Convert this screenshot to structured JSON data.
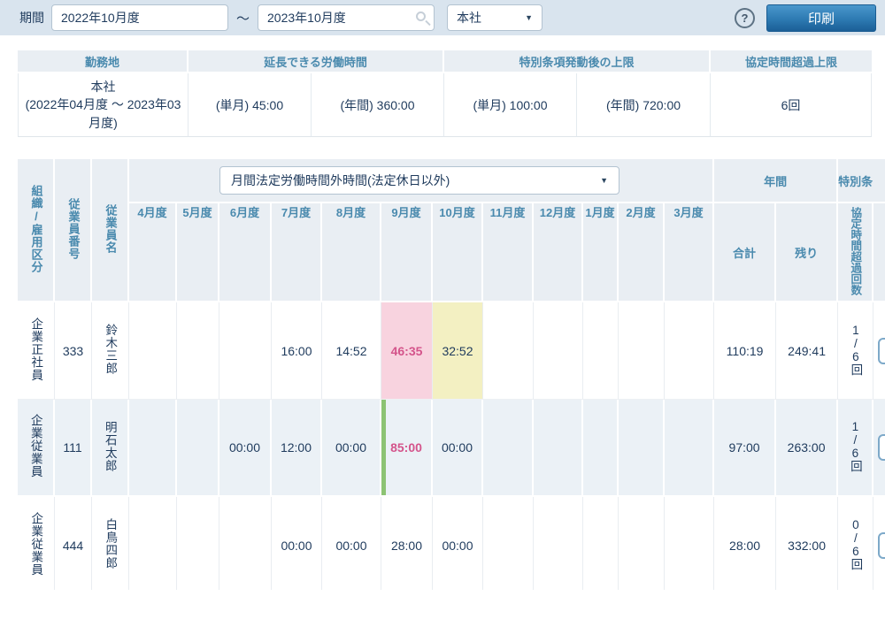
{
  "topbar": {
    "period_label": "期間",
    "period_from": "2022年10月度",
    "period_separator": "～",
    "period_to": "2023年10月度",
    "office_select": "本社",
    "help_label": "?",
    "print_button": "印刷"
  },
  "summary": {
    "header_workplace": "勤務地",
    "header_extendable": "延長できる労働時間",
    "header_special_limit": "特別条項発動後の上限",
    "header_exceed_limit": "協定時間超過上限",
    "workplace_name": "本社",
    "workplace_period": "(2022年04月度 ～ 2023年03月度)",
    "extendable_month": "(単月) 45:00",
    "extendable_year": "(年間) 360:00",
    "special_month": "(単月) 100:00",
    "special_year": "(年間) 720:00",
    "exceed_limit": "6回"
  },
  "main_table": {
    "org_header": "組織/雇用区分",
    "emp_no_header": "従業員番号",
    "emp_name_header": "従業員名",
    "metric_select": "月間法定労働時間外時間(法定休日以外)",
    "months": [
      "4月度",
      "5月度",
      "6月度",
      "7月度",
      "8月度",
      "9月度",
      "10月度",
      "11月度",
      "12月度",
      "1月度",
      "2月度",
      "3月度"
    ],
    "annual_group": "年間",
    "special_group": "特別条",
    "total_header": "合計",
    "remaining_header": "残り",
    "exceed_header": "協定時間超過回数",
    "rows": [
      {
        "org": "企業正社員",
        "emp_no": "333",
        "emp_name": "鈴木三郎",
        "values": [
          "",
          "",
          "",
          "16:00",
          "14:52",
          "46:35",
          "32:52",
          "",
          "",
          "",
          "",
          ""
        ],
        "highlights": {
          "5": "pink",
          "6": "yellow"
        },
        "total": "110:19",
        "remaining": "249:41",
        "exceed": "1/6回"
      },
      {
        "org": "企業従業員",
        "emp_no": "111",
        "emp_name": "明石太郎",
        "values": [
          "",
          "",
          "00:00",
          "12:00",
          "00:00",
          "85:00",
          "00:00",
          "",
          "",
          "",
          "",
          ""
        ],
        "highlights": {
          "5": "pink green-left"
        },
        "total": "97:00",
        "remaining": "263:00",
        "exceed": "1/6回"
      },
      {
        "org": "企業従業員",
        "emp_no": "444",
        "emp_name": "白鳥四郎",
        "values": [
          "",
          "",
          "",
          "00:00",
          "00:00",
          "28:00",
          "00:00",
          "",
          "",
          "",
          "",
          ""
        ],
        "highlights": {},
        "total": "28:00",
        "remaining": "332:00",
        "exceed": "0/6回"
      }
    ]
  },
  "colors": {
    "accent_blue": "#2d7ab2",
    "header_text": "#4a8aae",
    "body_text": "#1e3a5c",
    "alert_pink_bg": "#f8d3df",
    "alert_pink_text": "#d4548b",
    "warn_yellow_bg": "#f3f0c2",
    "green_marker": "#8cc373",
    "topbar_bg": "#d9e4ee",
    "header_bg": "#e9eef3",
    "shaded_row_bg": "#ebf1f6"
  }
}
